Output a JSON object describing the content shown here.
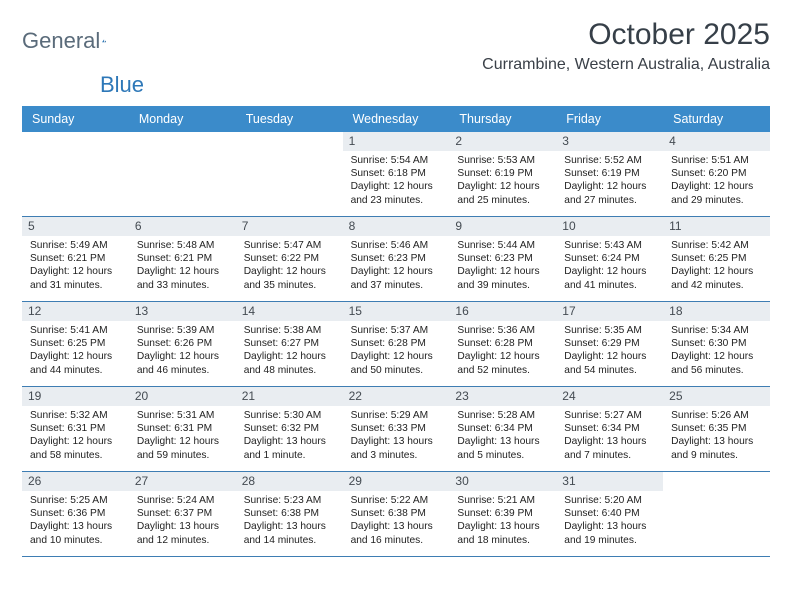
{
  "logo": {
    "part1": "General",
    "part2": "Blue"
  },
  "title": "October 2025",
  "location": "Currambine, Western Australia, Australia",
  "weekdays": [
    "Sunday",
    "Monday",
    "Tuesday",
    "Wednesday",
    "Thursday",
    "Friday",
    "Saturday"
  ],
  "colors": {
    "header_bg": "#3b8bca",
    "header_text": "#ffffff",
    "daynum_bg": "#e9edf1",
    "border": "#3e7db3",
    "title_color": "#363f48",
    "logo_gray": "#5a6b7a",
    "logo_blue": "#2e78b8"
  },
  "cells": [
    {
      "day": "",
      "sunrise": "",
      "sunset": "",
      "daylight": ""
    },
    {
      "day": "",
      "sunrise": "",
      "sunset": "",
      "daylight": ""
    },
    {
      "day": "",
      "sunrise": "",
      "sunset": "",
      "daylight": ""
    },
    {
      "day": "1",
      "sunrise": "Sunrise: 5:54 AM",
      "sunset": "Sunset: 6:18 PM",
      "daylight": "Daylight: 12 hours and 23 minutes."
    },
    {
      "day": "2",
      "sunrise": "Sunrise: 5:53 AM",
      "sunset": "Sunset: 6:19 PM",
      "daylight": "Daylight: 12 hours and 25 minutes."
    },
    {
      "day": "3",
      "sunrise": "Sunrise: 5:52 AM",
      "sunset": "Sunset: 6:19 PM",
      "daylight": "Daylight: 12 hours and 27 minutes."
    },
    {
      "day": "4",
      "sunrise": "Sunrise: 5:51 AM",
      "sunset": "Sunset: 6:20 PM",
      "daylight": "Daylight: 12 hours and 29 minutes."
    },
    {
      "day": "5",
      "sunrise": "Sunrise: 5:49 AM",
      "sunset": "Sunset: 6:21 PM",
      "daylight": "Daylight: 12 hours and 31 minutes."
    },
    {
      "day": "6",
      "sunrise": "Sunrise: 5:48 AM",
      "sunset": "Sunset: 6:21 PM",
      "daylight": "Daylight: 12 hours and 33 minutes."
    },
    {
      "day": "7",
      "sunrise": "Sunrise: 5:47 AM",
      "sunset": "Sunset: 6:22 PM",
      "daylight": "Daylight: 12 hours and 35 minutes."
    },
    {
      "day": "8",
      "sunrise": "Sunrise: 5:46 AM",
      "sunset": "Sunset: 6:23 PM",
      "daylight": "Daylight: 12 hours and 37 minutes."
    },
    {
      "day": "9",
      "sunrise": "Sunrise: 5:44 AM",
      "sunset": "Sunset: 6:23 PM",
      "daylight": "Daylight: 12 hours and 39 minutes."
    },
    {
      "day": "10",
      "sunrise": "Sunrise: 5:43 AM",
      "sunset": "Sunset: 6:24 PM",
      "daylight": "Daylight: 12 hours and 41 minutes."
    },
    {
      "day": "11",
      "sunrise": "Sunrise: 5:42 AM",
      "sunset": "Sunset: 6:25 PM",
      "daylight": "Daylight: 12 hours and 42 minutes."
    },
    {
      "day": "12",
      "sunrise": "Sunrise: 5:41 AM",
      "sunset": "Sunset: 6:25 PM",
      "daylight": "Daylight: 12 hours and 44 minutes."
    },
    {
      "day": "13",
      "sunrise": "Sunrise: 5:39 AM",
      "sunset": "Sunset: 6:26 PM",
      "daylight": "Daylight: 12 hours and 46 minutes."
    },
    {
      "day": "14",
      "sunrise": "Sunrise: 5:38 AM",
      "sunset": "Sunset: 6:27 PM",
      "daylight": "Daylight: 12 hours and 48 minutes."
    },
    {
      "day": "15",
      "sunrise": "Sunrise: 5:37 AM",
      "sunset": "Sunset: 6:28 PM",
      "daylight": "Daylight: 12 hours and 50 minutes."
    },
    {
      "day": "16",
      "sunrise": "Sunrise: 5:36 AM",
      "sunset": "Sunset: 6:28 PM",
      "daylight": "Daylight: 12 hours and 52 minutes."
    },
    {
      "day": "17",
      "sunrise": "Sunrise: 5:35 AM",
      "sunset": "Sunset: 6:29 PM",
      "daylight": "Daylight: 12 hours and 54 minutes."
    },
    {
      "day": "18",
      "sunrise": "Sunrise: 5:34 AM",
      "sunset": "Sunset: 6:30 PM",
      "daylight": "Daylight: 12 hours and 56 minutes."
    },
    {
      "day": "19",
      "sunrise": "Sunrise: 5:32 AM",
      "sunset": "Sunset: 6:31 PM",
      "daylight": "Daylight: 12 hours and 58 minutes."
    },
    {
      "day": "20",
      "sunrise": "Sunrise: 5:31 AM",
      "sunset": "Sunset: 6:31 PM",
      "daylight": "Daylight: 12 hours and 59 minutes."
    },
    {
      "day": "21",
      "sunrise": "Sunrise: 5:30 AM",
      "sunset": "Sunset: 6:32 PM",
      "daylight": "Daylight: 13 hours and 1 minute."
    },
    {
      "day": "22",
      "sunrise": "Sunrise: 5:29 AM",
      "sunset": "Sunset: 6:33 PM",
      "daylight": "Daylight: 13 hours and 3 minutes."
    },
    {
      "day": "23",
      "sunrise": "Sunrise: 5:28 AM",
      "sunset": "Sunset: 6:34 PM",
      "daylight": "Daylight: 13 hours and 5 minutes."
    },
    {
      "day": "24",
      "sunrise": "Sunrise: 5:27 AM",
      "sunset": "Sunset: 6:34 PM",
      "daylight": "Daylight: 13 hours and 7 minutes."
    },
    {
      "day": "25",
      "sunrise": "Sunrise: 5:26 AM",
      "sunset": "Sunset: 6:35 PM",
      "daylight": "Daylight: 13 hours and 9 minutes."
    },
    {
      "day": "26",
      "sunrise": "Sunrise: 5:25 AM",
      "sunset": "Sunset: 6:36 PM",
      "daylight": "Daylight: 13 hours and 10 minutes."
    },
    {
      "day": "27",
      "sunrise": "Sunrise: 5:24 AM",
      "sunset": "Sunset: 6:37 PM",
      "daylight": "Daylight: 13 hours and 12 minutes."
    },
    {
      "day": "28",
      "sunrise": "Sunrise: 5:23 AM",
      "sunset": "Sunset: 6:38 PM",
      "daylight": "Daylight: 13 hours and 14 minutes."
    },
    {
      "day": "29",
      "sunrise": "Sunrise: 5:22 AM",
      "sunset": "Sunset: 6:38 PM",
      "daylight": "Daylight: 13 hours and 16 minutes."
    },
    {
      "day": "30",
      "sunrise": "Sunrise: 5:21 AM",
      "sunset": "Sunset: 6:39 PM",
      "daylight": "Daylight: 13 hours and 18 minutes."
    },
    {
      "day": "31",
      "sunrise": "Sunrise: 5:20 AM",
      "sunset": "Sunset: 6:40 PM",
      "daylight": "Daylight: 13 hours and 19 minutes."
    },
    {
      "day": "",
      "sunrise": "",
      "sunset": "",
      "daylight": ""
    }
  ]
}
